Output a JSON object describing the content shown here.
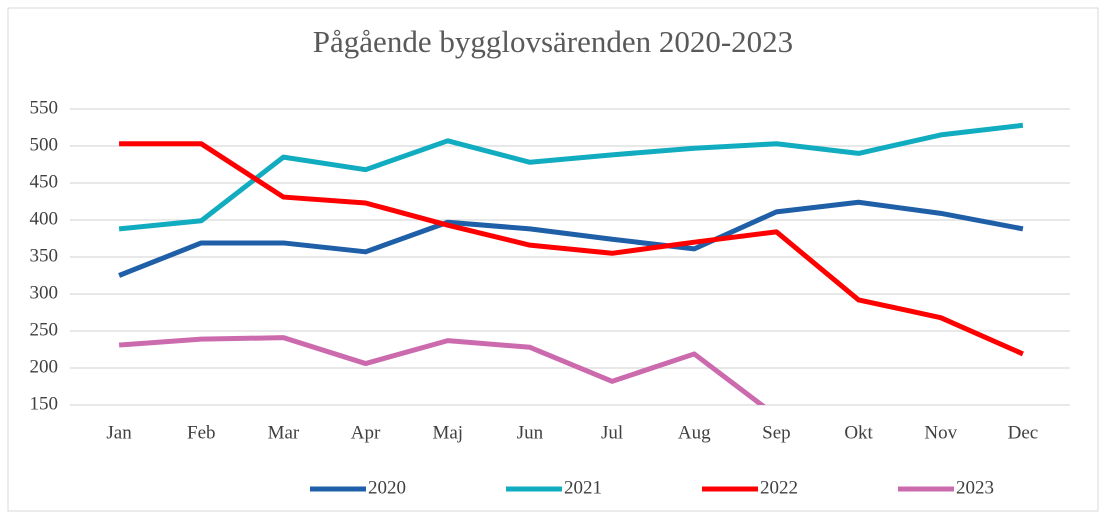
{
  "chart_data": {
    "type": "line",
    "title": "Pågående bygglovsärenden 2020-2023",
    "categories": [
      "Jan",
      "Feb",
      "Mar",
      "Apr",
      "Maj",
      "Jun",
      "Jul",
      "Aug",
      "Sep",
      "Okt",
      "Nov",
      "Dec"
    ],
    "series": [
      {
        "name": "2020",
        "color": "#1f5fa8",
        "values": [
          325,
          369,
          369,
          357,
          397,
          388,
          374,
          361,
          411,
          424,
          409,
          388
        ]
      },
      {
        "name": "2021",
        "color": "#12acc0",
        "values": [
          388,
          399,
          485,
          468,
          507,
          478,
          488,
          497,
          503,
          490,
          515,
          528
        ]
      },
      {
        "name": "2022",
        "color": "#ff0000",
        "values": [
          503,
          503,
          431,
          423,
          393,
          366,
          355,
          370,
          384,
          292,
          268,
          219
        ]
      },
      {
        "name": "2023",
        "color": "#cc6aae",
        "values": [
          231,
          239,
          241,
          206,
          237,
          228,
          182,
          219,
          135,
          null,
          null,
          null
        ]
      }
    ],
    "ylim": [
      150,
      550
    ],
    "yticks": [
      150,
      200,
      250,
      300,
      350,
      400,
      450,
      500,
      550
    ],
    "grid": true,
    "legend": "bottom"
  }
}
